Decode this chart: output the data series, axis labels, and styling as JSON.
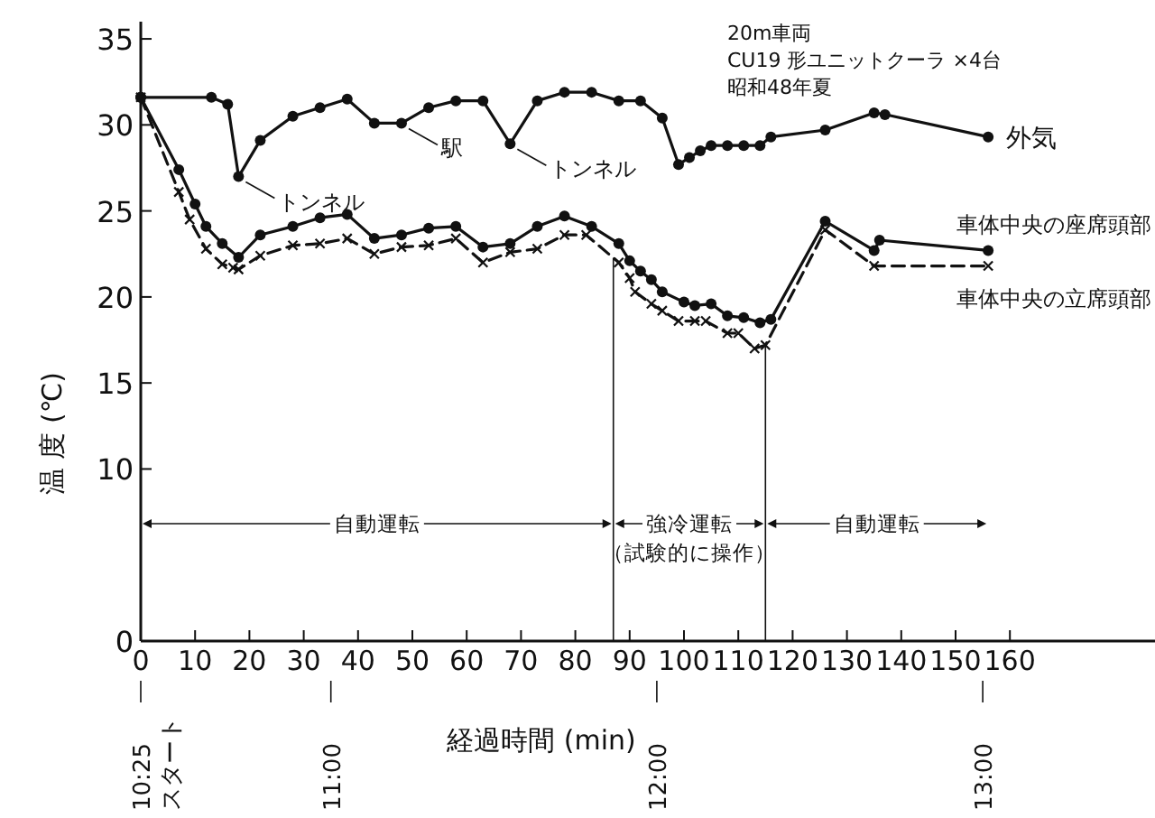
{
  "chart_data": {
    "type": "line",
    "title": "20m車両",
    "subtitle": "CU19 形ユニットクーラ ×4台",
    "xlabel": "経過時間 (min)",
    "ylabel": "温 度 (℃)",
    "xlim": [
      0,
      187
    ],
    "xticks": [
      0,
      10,
      20,
      30,
      40,
      50,
      60,
      70,
      80,
      90,
      100,
      110,
      120,
      130,
      140,
      150,
      160
    ],
    "ylim": [
      0,
      36
    ],
    "yticks": [
      0,
      10,
      15,
      20,
      25,
      30,
      35
    ],
    "x2lim": [
      10.4167,
      13.5333
    ],
    "x2ticks": [
      {
        "value": 10.4167,
        "label": "10:25"
      },
      {
        "value": 11,
        "label": "11:00"
      },
      {
        "value": 12,
        "label": "12:00"
      },
      {
        "value": 13,
        "label": "13:00"
      }
    ],
    "grid": false,
    "legend": false,
    "series": [
      {
        "name": "外気",
        "color": "#111111",
        "marker": "circle",
        "line_style": "solid",
        "x": [
          0,
          13,
          16,
          18,
          22,
          28,
          33,
          38,
          43,
          48,
          53,
          58,
          63,
          68,
          73,
          78,
          83,
          88,
          92,
          96,
          99,
          101,
          103,
          105,
          108,
          111,
          114,
          116,
          126,
          135,
          137,
          156
        ],
        "values": [
          31.6,
          31.6,
          31.2,
          27.0,
          29.1,
          30.5,
          31.0,
          31.5,
          30.1,
          30.1,
          31.0,
          31.4,
          31.4,
          28.9,
          31.4,
          31.9,
          31.9,
          31.4,
          31.4,
          30.4,
          27.7,
          28.1,
          28.5,
          28.8,
          28.8,
          28.8,
          28.8,
          29.3,
          29.7,
          30.7,
          30.6,
          29.3
        ]
      },
      {
        "name": "車体中央の座席頭部",
        "color": "#111111",
        "marker": "circle",
        "line_style": "solid",
        "x": [
          0,
          7,
          10,
          12,
          15,
          18,
          22,
          28,
          33,
          38,
          43,
          48,
          53,
          58,
          63,
          68,
          73,
          78,
          83,
          88,
          90,
          92,
          94,
          96,
          100,
          102,
          105,
          108,
          111,
          114,
          116,
          126,
          135,
          136,
          156
        ],
        "values": [
          31.6,
          27.4,
          25.4,
          24.1,
          23.1,
          22.3,
          23.6,
          24.1,
          24.6,
          24.8,
          23.4,
          23.6,
          24.0,
          24.1,
          22.9,
          23.1,
          24.1,
          24.7,
          24.1,
          23.1,
          22.1,
          21.5,
          21.0,
          20.3,
          19.7,
          19.5,
          19.6,
          18.9,
          18.8,
          18.5,
          18.7,
          24.4,
          22.7,
          23.3,
          22.7
        ]
      },
      {
        "name": "車体中央の立席頭部",
        "color": "#111111",
        "marker": "cross",
        "line_style": "dashed",
        "x": [
          0,
          7,
          9,
          12,
          15,
          17,
          18,
          22,
          28,
          33,
          38,
          43,
          48,
          53,
          58,
          63,
          68,
          73,
          78,
          82,
          88,
          90,
          91,
          94,
          96,
          99,
          102,
          104,
          108,
          110,
          113,
          115,
          126,
          135,
          156
        ],
        "values": [
          31.6,
          26.1,
          24.5,
          22.8,
          21.9,
          21.7,
          21.6,
          22.4,
          23.0,
          23.1,
          23.4,
          22.5,
          22.9,
          23.0,
          23.4,
          22.0,
          22.6,
          22.8,
          23.6,
          23.6,
          22.0,
          21.1,
          20.3,
          19.6,
          19.2,
          18.6,
          18.6,
          18.6,
          17.9,
          17.9,
          17.0,
          17.2,
          23.9,
          21.8,
          21.8
        ]
      }
    ],
    "ref_lines": [
      {
        "axis": "x",
        "value": 87
      },
      {
        "axis": "x",
        "value": 115
      }
    ],
    "annotations": [
      "昭和48年夏",
      "スタート",
      "自動運転",
      "強冷運転（試験的に操作）",
      "自動運転",
      {
        "text": "トンネル",
        "x": 18,
        "y": 27.0
      },
      {
        "text": "駅",
        "x": 48,
        "y": 30.1
      },
      {
        "text": "トンネル",
        "x": 68,
        "y": 28.9
      }
    ]
  }
}
